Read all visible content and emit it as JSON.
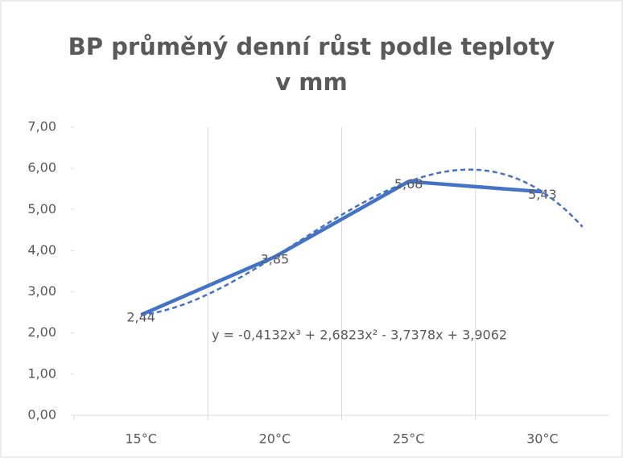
{
  "chart_data": {
    "type": "line",
    "title": "BP průměný denní růst podle teploty v mm",
    "categories": [
      "15°C",
      "20°C",
      "25°C",
      "30°C"
    ],
    "series": [
      {
        "name": "BP",
        "color": "#4472c4",
        "values": [
          2.44,
          3.85,
          5.68,
          5.43
        ],
        "value_labels": [
          "2,44",
          "3,85",
          "5,68",
          "5,43"
        ]
      }
    ],
    "ylim": [
      0,
      7
    ],
    "yticks": [
      {
        "value": 0,
        "label": "0,00"
      },
      {
        "value": 1,
        "label": "1,00"
      },
      {
        "value": 2,
        "label": "2,00"
      },
      {
        "value": 3,
        "label": "3,00"
      },
      {
        "value": 4,
        "label": "4,00"
      },
      {
        "value": 5,
        "label": "5,00"
      },
      {
        "value": 6,
        "label": "6,00"
      },
      {
        "value": 7,
        "label": "7,00"
      }
    ],
    "trendline": {
      "type": "polynomial",
      "coefficients": [
        -0.4132,
        2.6823,
        -3.7378,
        3.9062
      ],
      "forward": 0.3,
      "color": "#4472c4",
      "label": "y = -0,4132x³ + 2,6823x² - 3,7378x + 3,9062"
    }
  }
}
